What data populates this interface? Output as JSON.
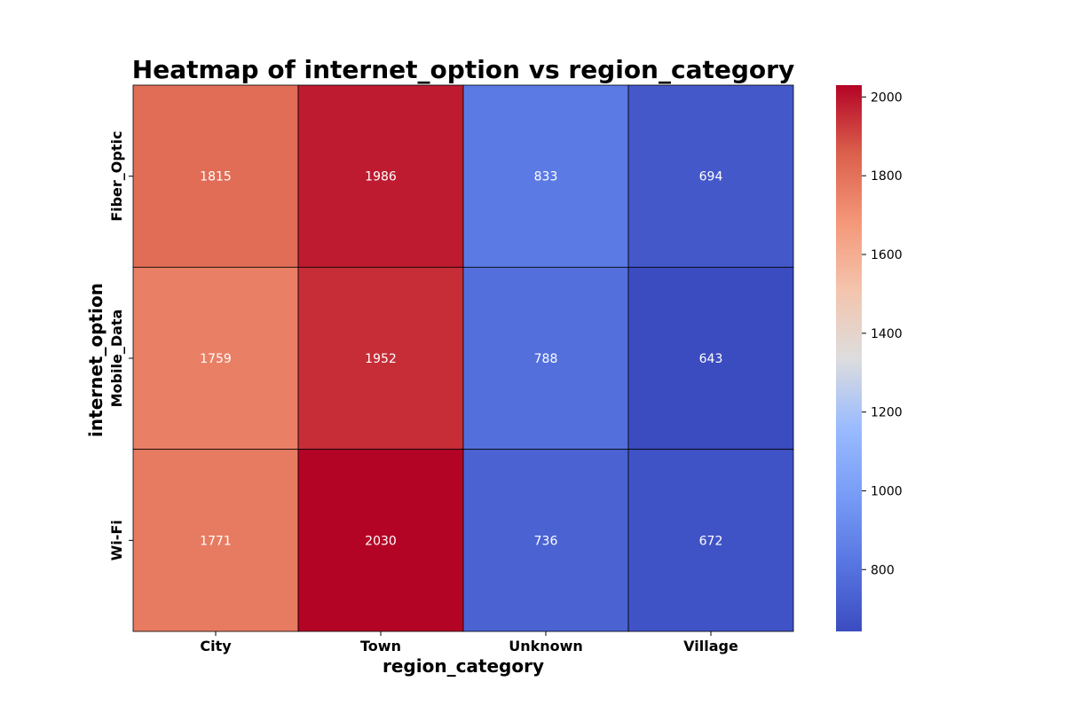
{
  "chart_data": {
    "type": "heatmap",
    "title": "Heatmap of internet_option vs region_category",
    "xlabel": "region_category",
    "ylabel": "internet_option",
    "x_categories": [
      "City",
      "Town",
      "Unknown",
      "Village"
    ],
    "y_categories": [
      "Fiber_Optic",
      "Mobile_Data",
      "Wi-Fi"
    ],
    "values": [
      [
        1815,
        1986,
        833,
        694
      ],
      [
        1759,
        1952,
        788,
        643
      ],
      [
        1771,
        2030,
        736,
        672
      ]
    ],
    "colormap": "coolwarm",
    "colorbar": {
      "min": 643,
      "max": 2030,
      "ticks": [
        800,
        1000,
        1200,
        1400,
        1600,
        1800,
        2000
      ]
    },
    "annotations": true,
    "cell_borders": true
  }
}
